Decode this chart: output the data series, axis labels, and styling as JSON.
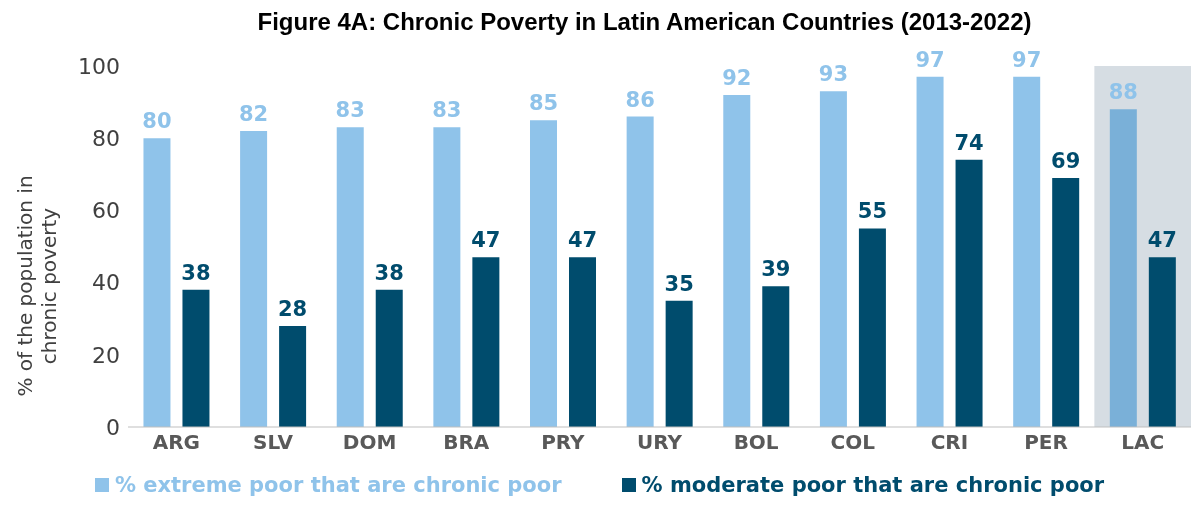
{
  "chart_data": {
    "type": "bar",
    "title": "Figure 4A: Chronic Poverty in Latin American Countries (2013-2022)",
    "ylabel": "% of the population in chronic poverty",
    "categories": [
      "ARG",
      "SLV",
      "DOM",
      "BRA",
      "PRY",
      "URY",
      "BOL",
      "COL",
      "CRI",
      "PER",
      "LAC"
    ],
    "series": [
      {
        "name": "% extreme poor that are chronic poor",
        "color": "#8fc3ea",
        "colors": [
          "#8fc3ea",
          "#8fc3ea",
          "#8fc3ea",
          "#8fc3ea",
          "#8fc3ea",
          "#8fc3ea",
          "#8fc3ea",
          "#8fc3ea",
          "#8fc3ea",
          "#8fc3ea",
          "#7ab0d8"
        ],
        "values": [
          80,
          82,
          83,
          83,
          85,
          86,
          92,
          93,
          97,
          97,
          88
        ]
      },
      {
        "name": "% moderate poor that are chronic poor",
        "color": "#004c6d",
        "values": [
          38,
          28,
          38,
          47,
          47,
          35,
          39,
          55,
          74,
          69,
          47
        ]
      }
    ],
    "ylim": [
      0,
      100
    ],
    "yticks": [
      0,
      20,
      40,
      60,
      80,
      100
    ],
    "legend": "bottom",
    "data_labels": true,
    "bands": [
      {
        "axis": "x",
        "from": "LAC",
        "to": "LAC",
        "color": "#d6dde3"
      }
    ]
  }
}
